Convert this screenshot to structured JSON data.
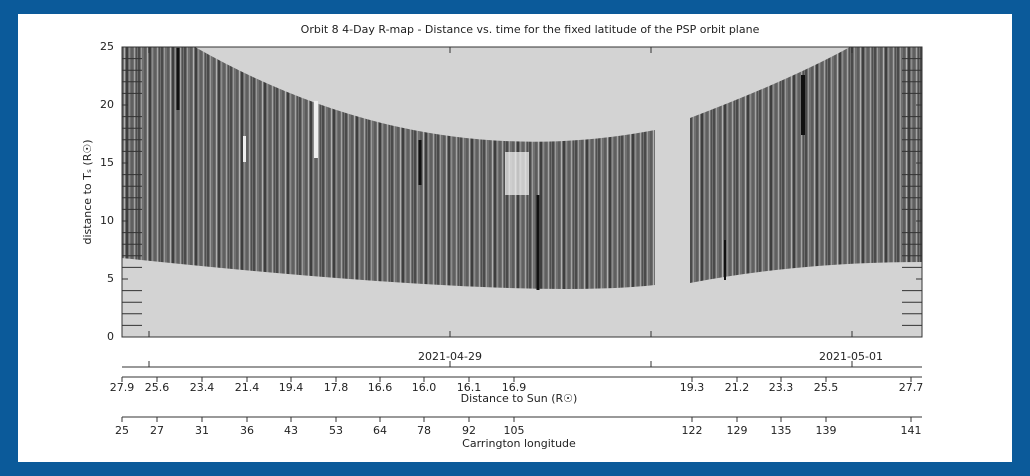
{
  "chart_data": {
    "type": "rmap",
    "title": "Orbit 8 4-Day R-map - Distance vs. time for the fixed latitude of the PSP orbit plane",
    "ylabel": "distance to Tₛ (R☉)",
    "ylim": [
      0,
      25
    ],
    "yticks": [
      0,
      5,
      10,
      15,
      20,
      25
    ],
    "date_axis": {
      "labels": [
        "2021-04-29",
        "2021-05-01"
      ]
    },
    "distance_axis": {
      "label": "Distance to Sun (R☉)",
      "ticks": [
        27.9,
        25.6,
        23.4,
        21.4,
        19.4,
        17.8,
        16.6,
        {
          "value": 16,
          "label": "16.0"
        },
        16.1,
        16.9,
        19.3,
        21.2,
        23.3,
        25.5,
        27.7
      ]
    },
    "carrington_axis": {
      "label": "Carrington longitude",
      "ticks": [
        25,
        27,
        31,
        36,
        43,
        53,
        64,
        78,
        92,
        105,
        122,
        129,
        135,
        139,
        141
      ]
    }
  }
}
